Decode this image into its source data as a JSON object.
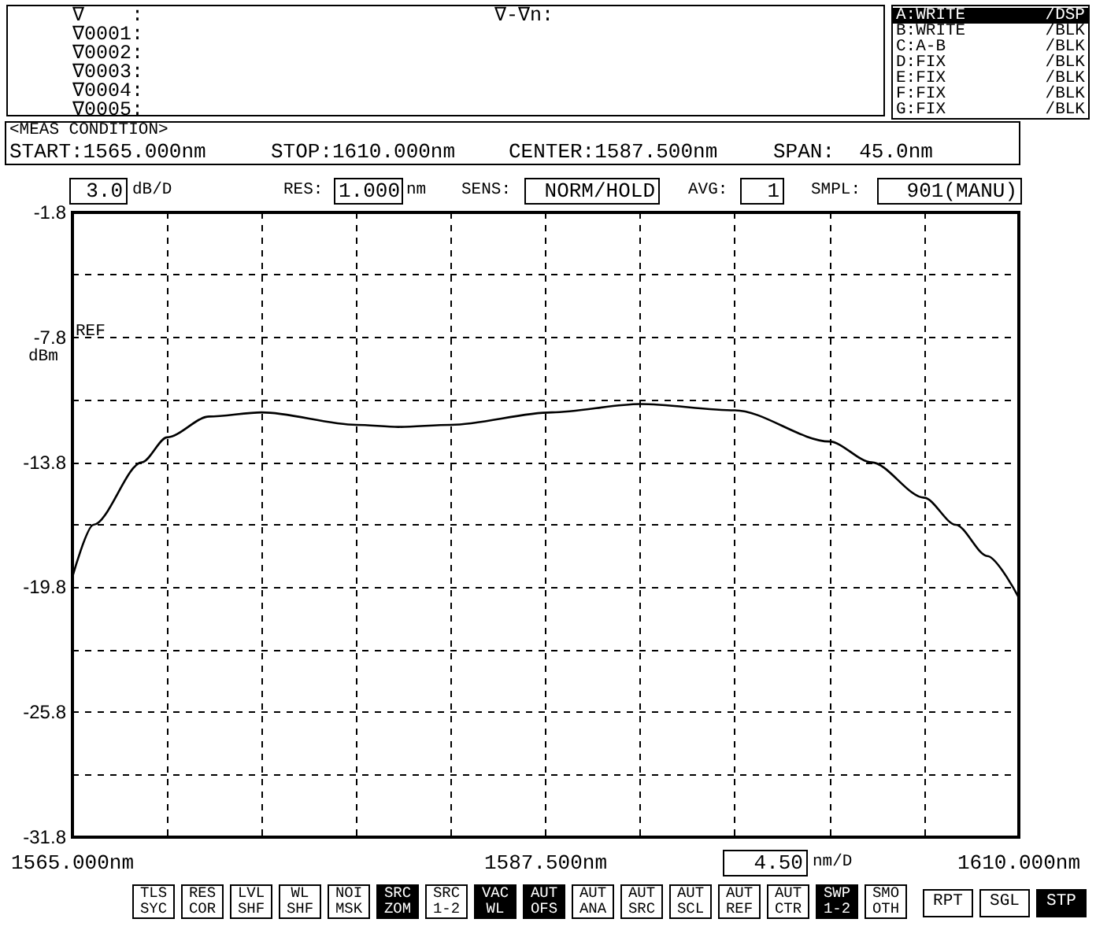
{
  "chart_data": {
    "type": "line",
    "x": [
      1565.0,
      1566.0,
      1568.3,
      1569.5,
      1571.5,
      1574.0,
      1578.5,
      1580.5,
      1583.0,
      1587.8,
      1592.0,
      1596.5,
      1601.0,
      1603.0,
      1605.5,
      1607.0,
      1608.5,
      1610.0
    ],
    "series": [
      {
        "color": "#000000",
        "values": [
          -19.3,
          -16.8,
          -13.8,
          -12.6,
          -11.6,
          -11.4,
          -12.0,
          -12.1,
          -12.0,
          -11.4,
          -11.0,
          -11.3,
          -12.8,
          -13.8,
          -15.5,
          -16.8,
          -18.3,
          -20.3
        ]
      }
    ],
    "xlim": [
      1565,
      1610
    ],
    "xticks": [
      {
        "value": 1565,
        "label": "1565.000nm"
      },
      {
        "value": 1569.5,
        "label": null
      },
      {
        "value": 1574,
        "label": null
      },
      {
        "value": 1578.5,
        "label": null
      },
      {
        "value": 1583,
        "label": null
      },
      {
        "value": 1587.5,
        "label": "1587.500nm"
      },
      {
        "value": 1592,
        "label": null
      },
      {
        "value": 1596.5,
        "label": null
      },
      {
        "value": 1601,
        "label": null
      },
      {
        "value": 1605.5,
        "label": null
      },
      {
        "value": 1610,
        "label": "1610.000nm"
      }
    ],
    "ylim": [
      -31.8,
      -1.8
    ],
    "yticks": [
      -31.8,
      {
        "value": -28.8,
        "label": null
      },
      -25.8,
      {
        "value": -22.8,
        "label": null
      },
      -19.8,
      {
        "value": -16.8,
        "label": null
      },
      -13.8,
      {
        "value": -10.8,
        "label": null
      },
      -7.8,
      {
        "value": -4.8,
        "label": null
      },
      -1.8
    ],
    "grid": true,
    "marker": "none",
    "line_style": "solid",
    "annotations": [
      "∇    :",
      "∇0001:",
      "∇0002:",
      "∇0003:",
      "∇0004:",
      "∇0005:",
      "∇-∇n:",
      "A:WRITE",
      "/DSP",
      "B:WRITE",
      "/BLK",
      "C:A-B",
      "/BLK",
      "D:FIX",
      "/BLK",
      "E:FIX",
      "/BLK",
      "F:FIX",
      "/BLK",
      "G:FIX",
      "/BLK",
      "<MEAS CONDITION>",
      "START:1565.000nm",
      "STOP:1610.000nm",
      "CENTER:1587.500nm",
      "SPAN:  45.0nm",
      "3.0",
      "dB/D",
      "RES:",
      "1.000",
      "nm",
      "SENS:",
      "NORM/HOLD",
      "AVG:",
      "1",
      "SMPL:",
      "901(MANU)",
      "REF",
      "dBm",
      "4.50",
      "nm/D",
      "TLS\nSYC",
      "RES\nCOR",
      "LVL\nSHF",
      "WL\nSHF",
      "NOI\nMSK",
      "SRC\nZOM",
      "SRC\n1-2",
      "VAC\nWL",
      "AUT\nOFS",
      "AUT\nANA",
      "AUT\nSRC",
      "AUT\nSCL",
      "AUT\nREF",
      "AUT\nCTR",
      "SWP\n1-2",
      "SMO\nOTH",
      "RPT",
      "SGL",
      "STP"
    ]
  }
}
